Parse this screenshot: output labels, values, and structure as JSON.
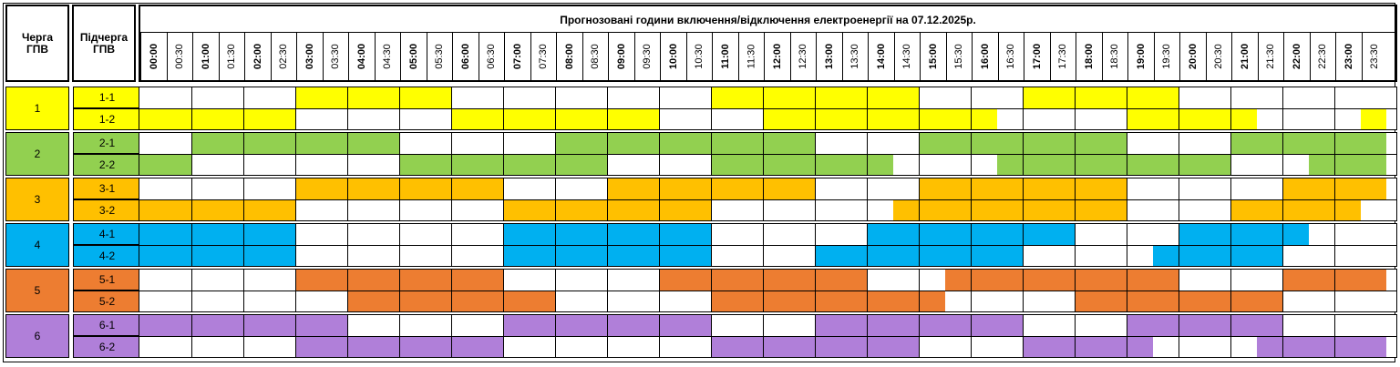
{
  "header": {
    "queue_label": "Черга\nГПВ",
    "subqueue_label": "Підчерга\nГПВ",
    "title": "Прогнозовані години включення/відключення електроенергії на 07.12.2025р."
  },
  "times": [
    "00:00",
    "00:30",
    "01:00",
    "01:30",
    "02:00",
    "02:30",
    "03:00",
    "03:30",
    "04:00",
    "04:30",
    "05:00",
    "05:30",
    "06:00",
    "06:30",
    "07:00",
    "07:30",
    "08:00",
    "08:30",
    "09:00",
    "09:30",
    "10:00",
    "10:30",
    "11:00",
    "11:30",
    "12:00",
    "12:30",
    "13:00",
    "13:30",
    "14:00",
    "14:30",
    "15:00",
    "15:30",
    "16:00",
    "16:30",
    "17:00",
    "17:30",
    "18:00",
    "18:30",
    "19:00",
    "19:30",
    "20:00",
    "20:30",
    "21:00",
    "21:30",
    "22:00",
    "22:30",
    "23:00",
    "23:30"
  ],
  "groups": [
    {
      "queue": "1",
      "color": "#ffff00",
      "subs": [
        {
          "label": "1-1",
          "outages_hours": [
            [
              3,
              6
            ],
            [
              11,
              15
            ],
            [
              17,
              20
            ]
          ]
        },
        {
          "label": "1-2",
          "outages_hours": [
            [
              0,
              3
            ],
            [
              6,
              10
            ],
            [
              12,
              16.5
            ],
            [
              19,
              21.5
            ],
            [
              23.5,
              24
            ]
          ]
        }
      ]
    },
    {
      "queue": "2",
      "color": "#92d050",
      "subs": [
        {
          "label": "2-1",
          "outages_hours": [
            [
              1,
              5
            ],
            [
              8,
              13
            ],
            [
              15,
              19
            ],
            [
              21,
              24
            ]
          ]
        },
        {
          "label": "2-2",
          "outages_hours": [
            [
              0,
              1
            ],
            [
              5,
              9
            ],
            [
              11,
              14.5
            ],
            [
              16.5,
              21
            ],
            [
              22.5,
              24
            ]
          ]
        }
      ]
    },
    {
      "queue": "3",
      "color": "#ffc000",
      "subs": [
        {
          "label": "3-1",
          "outages_hours": [
            [
              3,
              7
            ],
            [
              9,
              13
            ],
            [
              15,
              19
            ],
            [
              22,
              24
            ]
          ]
        },
        {
          "label": "3-2",
          "outages_hours": [
            [
              0,
              3
            ],
            [
              7,
              11
            ],
            [
              14.5,
              19
            ],
            [
              21,
              23.5
            ]
          ]
        }
      ]
    },
    {
      "queue": "4",
      "color": "#00b0f0",
      "subs": [
        {
          "label": "4-1",
          "outages_hours": [
            [
              0,
              3
            ],
            [
              7,
              11
            ],
            [
              14,
              18
            ],
            [
              20,
              22.5
            ]
          ]
        },
        {
          "label": "4-2",
          "outages_hours": [
            [
              0,
              3
            ],
            [
              7,
              11
            ],
            [
              13,
              17
            ],
            [
              19.5,
              22
            ]
          ]
        }
      ]
    },
    {
      "queue": "5",
      "color": "#ed7d31",
      "subs": [
        {
          "label": "5-1",
          "outages_hours": [
            [
              3,
              7
            ],
            [
              10,
              14
            ],
            [
              15.5,
              20
            ],
            [
              22,
              24
            ]
          ]
        },
        {
          "label": "5-2",
          "outages_hours": [
            [
              4,
              8
            ],
            [
              11,
              15.5
            ],
            [
              18,
              22
            ]
          ]
        }
      ]
    },
    {
      "queue": "6",
      "color": "#b07fd9",
      "subs": [
        {
          "label": "6-1",
          "outages_hours": [
            [
              0,
              4
            ],
            [
              7,
              11
            ],
            [
              13,
              17
            ],
            [
              19,
              22
            ]
          ]
        },
        {
          "label": "6-2",
          "outages_hours": [
            [
              3,
              7
            ],
            [
              11,
              15
            ],
            [
              17,
              19.5
            ],
            [
              21.5,
              24
            ]
          ]
        }
      ]
    }
  ]
}
